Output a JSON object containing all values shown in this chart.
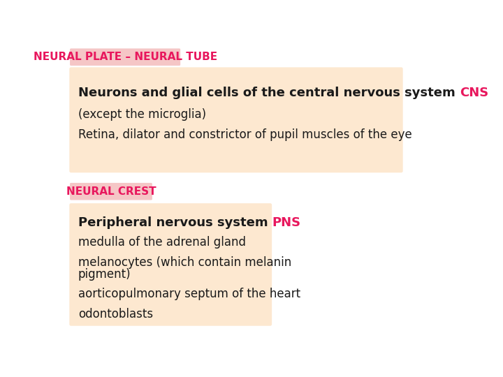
{
  "background_color": "#ffffff",
  "title1": "NEURAL PLATE – NEURAL TUBE",
  "title1_color": "#e8175d",
  "title1_bg": "#f5c6c6",
  "box1_bg": "#fde8d0",
  "box1_line1_black": "Neurons and glial cells of the central nervous system ",
  "box1_line1_colored": "CNS",
  "box1_line1_color": "#e8175d",
  "box1_line2": "(except the microglia)",
  "box1_line3": "Retina, dilator and constrictor of pupil muscles of the eye",
  "title2": "NEURAL CREST",
  "title2_color": "#e8175d",
  "title2_bg": "#f5c6c6",
  "box2_bg": "#fde8d0",
  "box2_line1_black": "Peripheral nervous system ",
  "box2_line1_colored": "PNS",
  "box2_line1_color": "#e8175d",
  "box2_line2": "medulla of the adrenal gland",
  "box2_line3a": "melanocytes (which contain melanin",
  "box2_line3b": "pigment)",
  "box2_line4": "aorticopulmonary septum of the heart",
  "box2_line5": "odontoblasts"
}
